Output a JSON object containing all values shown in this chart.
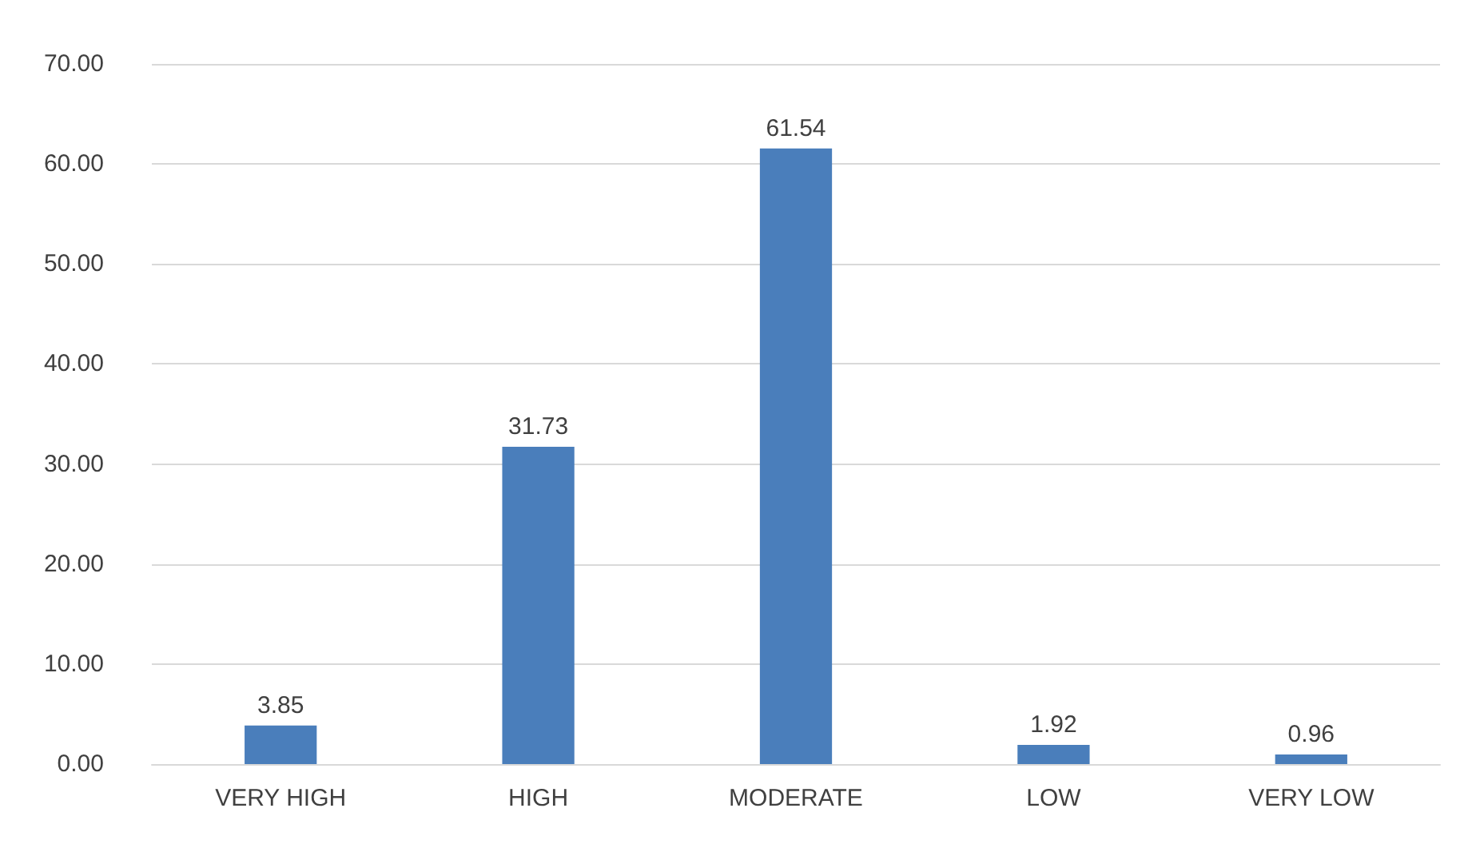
{
  "chart_data": {
    "type": "bar",
    "categories": [
      "VERY HIGH",
      "HIGH",
      "MODERATE",
      "LOW",
      "VERY LOW"
    ],
    "values": [
      3.85,
      31.73,
      61.54,
      1.92,
      0.96
    ],
    "color": "#4a7ebb",
    "data_labels": true,
    "grid": "y",
    "ylim": [
      0,
      70
    ],
    "yticks": [
      {
        "value": 0,
        "label": "0.00"
      },
      {
        "value": 10,
        "label": "10.00"
      },
      {
        "value": 20,
        "label": "20.00"
      },
      {
        "value": 30,
        "label": "30.00"
      },
      {
        "value": 40,
        "label": "40.00"
      },
      {
        "value": 50,
        "label": "50.00"
      },
      {
        "value": 60,
        "label": "60.00"
      },
      {
        "value": 70,
        "label": "70.00"
      }
    ]
  }
}
